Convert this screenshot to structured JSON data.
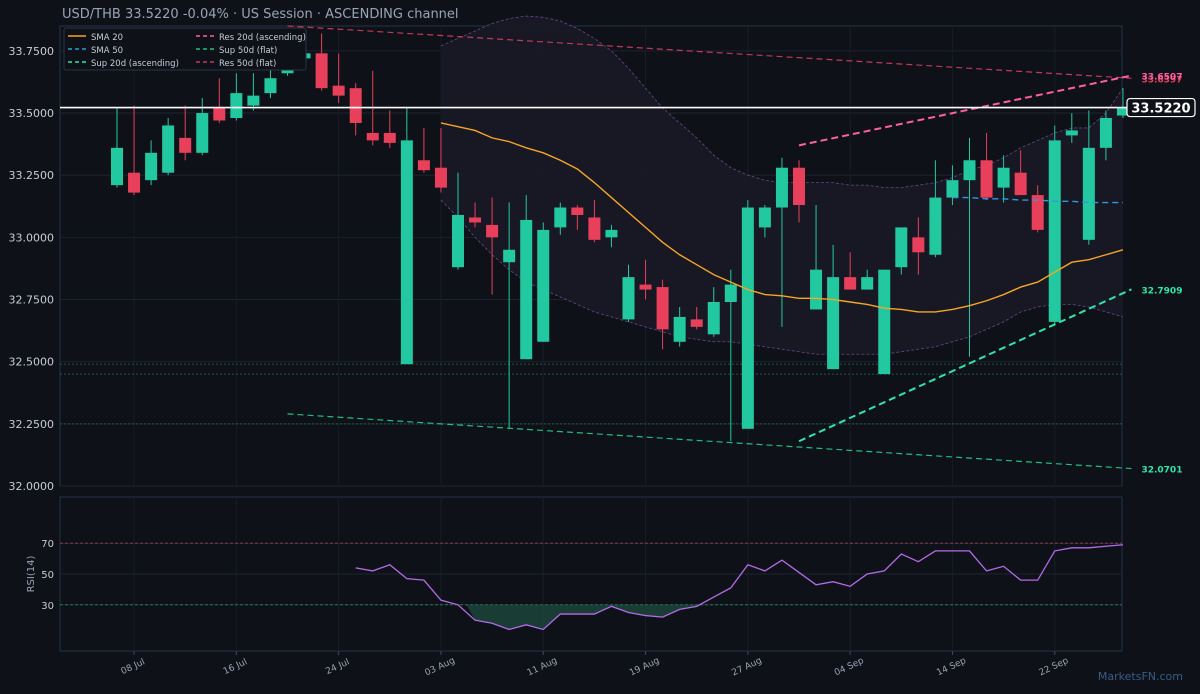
{
  "header": {
    "symbol": "USD/THB",
    "price": "33.5220",
    "change": "-0.04%",
    "session": "US Session",
    "pattern": "ASCENDING channel"
  },
  "watermark": "MarketsFN.com",
  "colors": {
    "background": "#0f1118",
    "up": "#22c9a0",
    "down": "#e8405a",
    "sma20": "#f5a623",
    "sma50": "#2d9cdb",
    "sup20": "#2ee6a6",
    "sup50": "#1fbf7e",
    "res20": "#ff5fa0",
    "res50": "#c23a5a",
    "rsi": "#b46be6",
    "bands": "#8a5fb0"
  },
  "chart_data": [
    {
      "type": "candlestick",
      "xlabel": "",
      "ylabel": "",
      "ylim": [
        32.0,
        33.85
      ],
      "y_ticks": [
        "32.0000",
        "32.2500",
        "32.5000",
        "32.7500",
        "33.0000",
        "33.2500",
        "33.5000",
        "33.7500"
      ],
      "x_ticks": [
        "08 Jul",
        "16 Jul",
        "24 Jul",
        "03 Aug",
        "11 Aug",
        "19 Aug",
        "27 Aug",
        "04 Sep",
        "14 Sep",
        "22 Sep"
      ],
      "x_tick_index": [
        1,
        7,
        13,
        19,
        25,
        31,
        37,
        43,
        49,
        55
      ],
      "current_price": 33.522,
      "current_price_label": "33.5220",
      "legend": [
        {
          "name": "SMA 20",
          "key": "sma20",
          "dash": false
        },
        {
          "name": "SMA 50",
          "key": "sma50",
          "dash": true
        },
        {
          "name": "Sup 20d (ascending)",
          "key": "sup20",
          "dash": true
        },
        {
          "name": "Res 20d (ascending)",
          "key": "res20",
          "dash": true
        },
        {
          "name": "Sup 50d (flat)",
          "key": "sup50",
          "dash": true
        },
        {
          "name": "Res 50d (flat)",
          "key": "res50",
          "dash": true
        }
      ],
      "candles": [
        {
          "o": 33.21,
          "h": 33.52,
          "l": 33.2,
          "c": 33.36
        },
        {
          "o": 33.26,
          "h": 33.53,
          "l": 33.17,
          "c": 33.18
        },
        {
          "o": 33.23,
          "h": 33.39,
          "l": 33.21,
          "c": 33.34
        },
        {
          "o": 33.26,
          "h": 33.48,
          "l": 33.25,
          "c": 33.45
        },
        {
          "o": 33.4,
          "h": 33.53,
          "l": 33.31,
          "c": 33.34
        },
        {
          "o": 33.34,
          "h": 33.56,
          "l": 33.33,
          "c": 33.5
        },
        {
          "o": 33.52,
          "h": 33.64,
          "l": 33.46,
          "c": 33.47
        },
        {
          "o": 33.48,
          "h": 33.66,
          "l": 33.47,
          "c": 33.58
        },
        {
          "o": 33.53,
          "h": 33.66,
          "l": 33.51,
          "c": 33.57
        },
        {
          "o": 33.58,
          "h": 33.68,
          "l": 33.56,
          "c": 33.64
        },
        {
          "o": 33.66,
          "h": 33.79,
          "l": 33.65,
          "c": 33.71
        },
        {
          "o": 33.72,
          "h": 33.79,
          "l": 33.7,
          "c": 33.74
        },
        {
          "o": 33.74,
          "h": 33.82,
          "l": 33.59,
          "c": 33.6
        },
        {
          "o": 33.61,
          "h": 33.74,
          "l": 33.54,
          "c": 33.57
        },
        {
          "o": 33.6,
          "h": 33.62,
          "l": 33.41,
          "c": 33.46
        },
        {
          "o": 33.42,
          "h": 33.67,
          "l": 33.37,
          "c": 33.39
        },
        {
          "o": 33.42,
          "h": 33.51,
          "l": 33.36,
          "c": 33.38
        },
        {
          "o": 32.49,
          "h": 33.52,
          "l": 32.49,
          "c": 33.39
        },
        {
          "o": 33.31,
          "h": 33.44,
          "l": 33.26,
          "c": 33.27
        },
        {
          "o": 33.28,
          "h": 33.44,
          "l": 33.18,
          "c": 33.2
        },
        {
          "o": 32.88,
          "h": 33.26,
          "l": 32.87,
          "c": 33.09
        },
        {
          "o": 33.08,
          "h": 33.14,
          "l": 33.04,
          "c": 33.06
        },
        {
          "o": 33.05,
          "h": 33.16,
          "l": 32.77,
          "c": 33.0
        },
        {
          "o": 32.9,
          "h": 33.14,
          "l": 32.23,
          "c": 32.95
        },
        {
          "o": 32.51,
          "h": 33.17,
          "l": 32.51,
          "c": 33.07
        },
        {
          "o": 32.58,
          "h": 33.06,
          "l": 32.58,
          "c": 33.03
        },
        {
          "o": 33.04,
          "h": 33.14,
          "l": 33.01,
          "c": 33.12
        },
        {
          "o": 33.12,
          "h": 33.13,
          "l": 33.03,
          "c": 33.09
        },
        {
          "o": 33.08,
          "h": 33.15,
          "l": 32.98,
          "c": 32.99
        },
        {
          "o": 33.0,
          "h": 33.05,
          "l": 32.96,
          "c": 33.03
        },
        {
          "o": 32.67,
          "h": 32.89,
          "l": 32.66,
          "c": 32.84
        },
        {
          "o": 32.81,
          "h": 32.91,
          "l": 32.75,
          "c": 32.79
        },
        {
          "o": 32.8,
          "h": 32.83,
          "l": 32.55,
          "c": 32.63
        },
        {
          "o": 32.58,
          "h": 32.72,
          "l": 32.56,
          "c": 32.68
        },
        {
          "o": 32.67,
          "h": 32.72,
          "l": 32.63,
          "c": 32.64
        },
        {
          "o": 32.61,
          "h": 32.8,
          "l": 32.6,
          "c": 32.74
        },
        {
          "o": 32.74,
          "h": 32.87,
          "l": 32.18,
          "c": 32.81
        },
        {
          "o": 32.23,
          "h": 33.15,
          "l": 32.23,
          "c": 33.12
        },
        {
          "o": 33.04,
          "h": 33.13,
          "l": 33.0,
          "c": 33.12
        },
        {
          "o": 33.12,
          "h": 33.32,
          "l": 32.64,
          "c": 33.28
        },
        {
          "o": 33.28,
          "h": 33.31,
          "l": 33.06,
          "c": 33.13
        },
        {
          "o": 32.71,
          "h": 33.13,
          "l": 32.71,
          "c": 32.87
        },
        {
          "o": 32.47,
          "h": 32.97,
          "l": 32.47,
          "c": 32.84
        },
        {
          "o": 32.84,
          "h": 32.94,
          "l": 32.79,
          "c": 32.79
        },
        {
          "o": 32.79,
          "h": 32.87,
          "l": 32.79,
          "c": 32.84
        },
        {
          "o": 32.45,
          "h": 32.87,
          "l": 32.45,
          "c": 32.87
        },
        {
          "o": 32.88,
          "h": 33.04,
          "l": 32.85,
          "c": 33.04
        },
        {
          "o": 33.0,
          "h": 33.08,
          "l": 32.85,
          "c": 32.94
        },
        {
          "o": 32.93,
          "h": 33.31,
          "l": 32.92,
          "c": 33.16
        },
        {
          "o": 33.16,
          "h": 33.29,
          "l": 33.13,
          "c": 33.23
        },
        {
          "o": 33.23,
          "h": 33.4,
          "l": 32.52,
          "c": 33.31
        },
        {
          "o": 33.31,
          "h": 33.42,
          "l": 33.15,
          "c": 33.16
        },
        {
          "o": 33.2,
          "h": 33.33,
          "l": 33.14,
          "c": 33.28
        },
        {
          "o": 33.26,
          "h": 33.35,
          "l": 33.17,
          "c": 33.17
        },
        {
          "o": 33.17,
          "h": 33.21,
          "l": 33.02,
          "c": 33.03
        },
        {
          "o": 32.66,
          "h": 33.45,
          "l": 32.65,
          "c": 33.39
        },
        {
          "o": 33.41,
          "h": 33.5,
          "l": 33.38,
          "c": 33.43
        },
        {
          "o": 32.99,
          "h": 33.51,
          "l": 32.97,
          "c": 33.36
        },
        {
          "o": 33.36,
          "h": 33.51,
          "l": 33.31,
          "c": 33.48
        },
        {
          "o": 33.49,
          "h": 33.6,
          "l": 33.48,
          "c": 33.52
        }
      ],
      "sma20": [
        null,
        null,
        null,
        null,
        null,
        null,
        null,
        null,
        null,
        null,
        null,
        null,
        null,
        null,
        null,
        null,
        null,
        null,
        null,
        33.46,
        33.445,
        33.43,
        33.4,
        33.385,
        33.36,
        33.34,
        33.31,
        33.275,
        33.22,
        33.16,
        33.1,
        33.04,
        32.98,
        32.93,
        32.89,
        32.85,
        32.82,
        32.79,
        32.77,
        32.765,
        32.755,
        32.755,
        32.75,
        32.74,
        32.73,
        32.715,
        32.71,
        32.7,
        32.7,
        32.71,
        32.725,
        32.745,
        32.77,
        32.8,
        32.82,
        32.86,
        32.9,
        32.91,
        32.93,
        32.95
      ],
      "sma50": [
        null,
        null,
        null,
        null,
        null,
        null,
        null,
        null,
        null,
        null,
        null,
        null,
        null,
        null,
        null,
        null,
        null,
        null,
        null,
        null,
        null,
        null,
        null,
        null,
        null,
        null,
        null,
        null,
        null,
        null,
        null,
        null,
        null,
        null,
        null,
        null,
        null,
        null,
        null,
        null,
        null,
        null,
        null,
        null,
        null,
        null,
        null,
        null,
        null,
        33.16,
        33.16,
        33.155,
        33.155,
        33.15,
        33.15,
        33.145,
        33.145,
        33.14,
        33.14,
        33.14
      ],
      "bb_upper": [
        null,
        null,
        null,
        null,
        null,
        null,
        null,
        null,
        null,
        null,
        null,
        null,
        null,
        null,
        null,
        null,
        null,
        null,
        null,
        33.77,
        33.8,
        33.83,
        33.86,
        33.88,
        33.89,
        33.885,
        33.87,
        33.84,
        33.8,
        33.75,
        33.68,
        33.6,
        33.52,
        33.46,
        33.4,
        33.33,
        33.28,
        33.25,
        33.23,
        33.22,
        33.22,
        33.22,
        33.22,
        33.21,
        33.21,
        33.2,
        33.2,
        33.21,
        33.22,
        33.24,
        33.27,
        33.29,
        33.32,
        33.36,
        33.39,
        33.42,
        33.44,
        33.44,
        33.5,
        33.6
      ],
      "bb_lower": [
        null,
        null,
        null,
        null,
        null,
        null,
        null,
        null,
        null,
        null,
        null,
        null,
        null,
        null,
        null,
        null,
        null,
        null,
        null,
        33.15,
        33.08,
        33.0,
        32.93,
        32.87,
        32.82,
        32.79,
        32.76,
        32.73,
        32.7,
        32.68,
        32.66,
        32.64,
        32.62,
        32.6,
        32.59,
        32.58,
        32.58,
        32.57,
        32.56,
        32.55,
        32.54,
        32.53,
        32.53,
        32.53,
        32.53,
        32.53,
        32.54,
        32.55,
        32.56,
        32.58,
        32.6,
        32.63,
        32.66,
        32.7,
        32.72,
        32.73,
        32.73,
        32.72,
        32.7,
        32.68
      ],
      "levels": {
        "sup20": {
          "x0": 40,
          "y0": 32.18,
          "x1": 59.5,
          "y1": 32.7909,
          "label": "32.7909"
        },
        "res20": {
          "x0": 40,
          "y0": 33.37,
          "x1": 59.5,
          "y1": 33.6507,
          "label": "33.6507"
        },
        "sup50": {
          "x0": 10,
          "y0": 32.29,
          "x1": 59.5,
          "y1": 32.0701,
          "label": "32.0701"
        },
        "res50": {
          "x0": 10,
          "y0": 33.85,
          "x1": 59.5,
          "y1": 33.6397,
          "label": "33.6397"
        },
        "h_dotted": [
          32.49,
          32.45,
          32.25
        ]
      }
    },
    {
      "type": "line",
      "ylabel": "RSI(14)",
      "ylim": [
        0,
        100
      ],
      "y_ticks": [
        "30",
        "50",
        "70"
      ],
      "overbought": 70,
      "oversold": 30,
      "x_start_index": 14,
      "values": [
        54,
        52,
        56,
        47,
        46,
        33,
        30,
        20,
        18,
        14,
        17,
        14,
        24,
        24,
        24,
        29,
        25,
        23,
        22,
        27,
        29,
        35,
        41,
        56,
        52,
        59,
        51,
        43,
        45,
        42,
        50,
        52,
        63,
        58,
        65,
        65,
        65,
        52,
        55,
        46,
        46,
        65,
        67,
        67,
        68,
        69
      ]
    }
  ]
}
